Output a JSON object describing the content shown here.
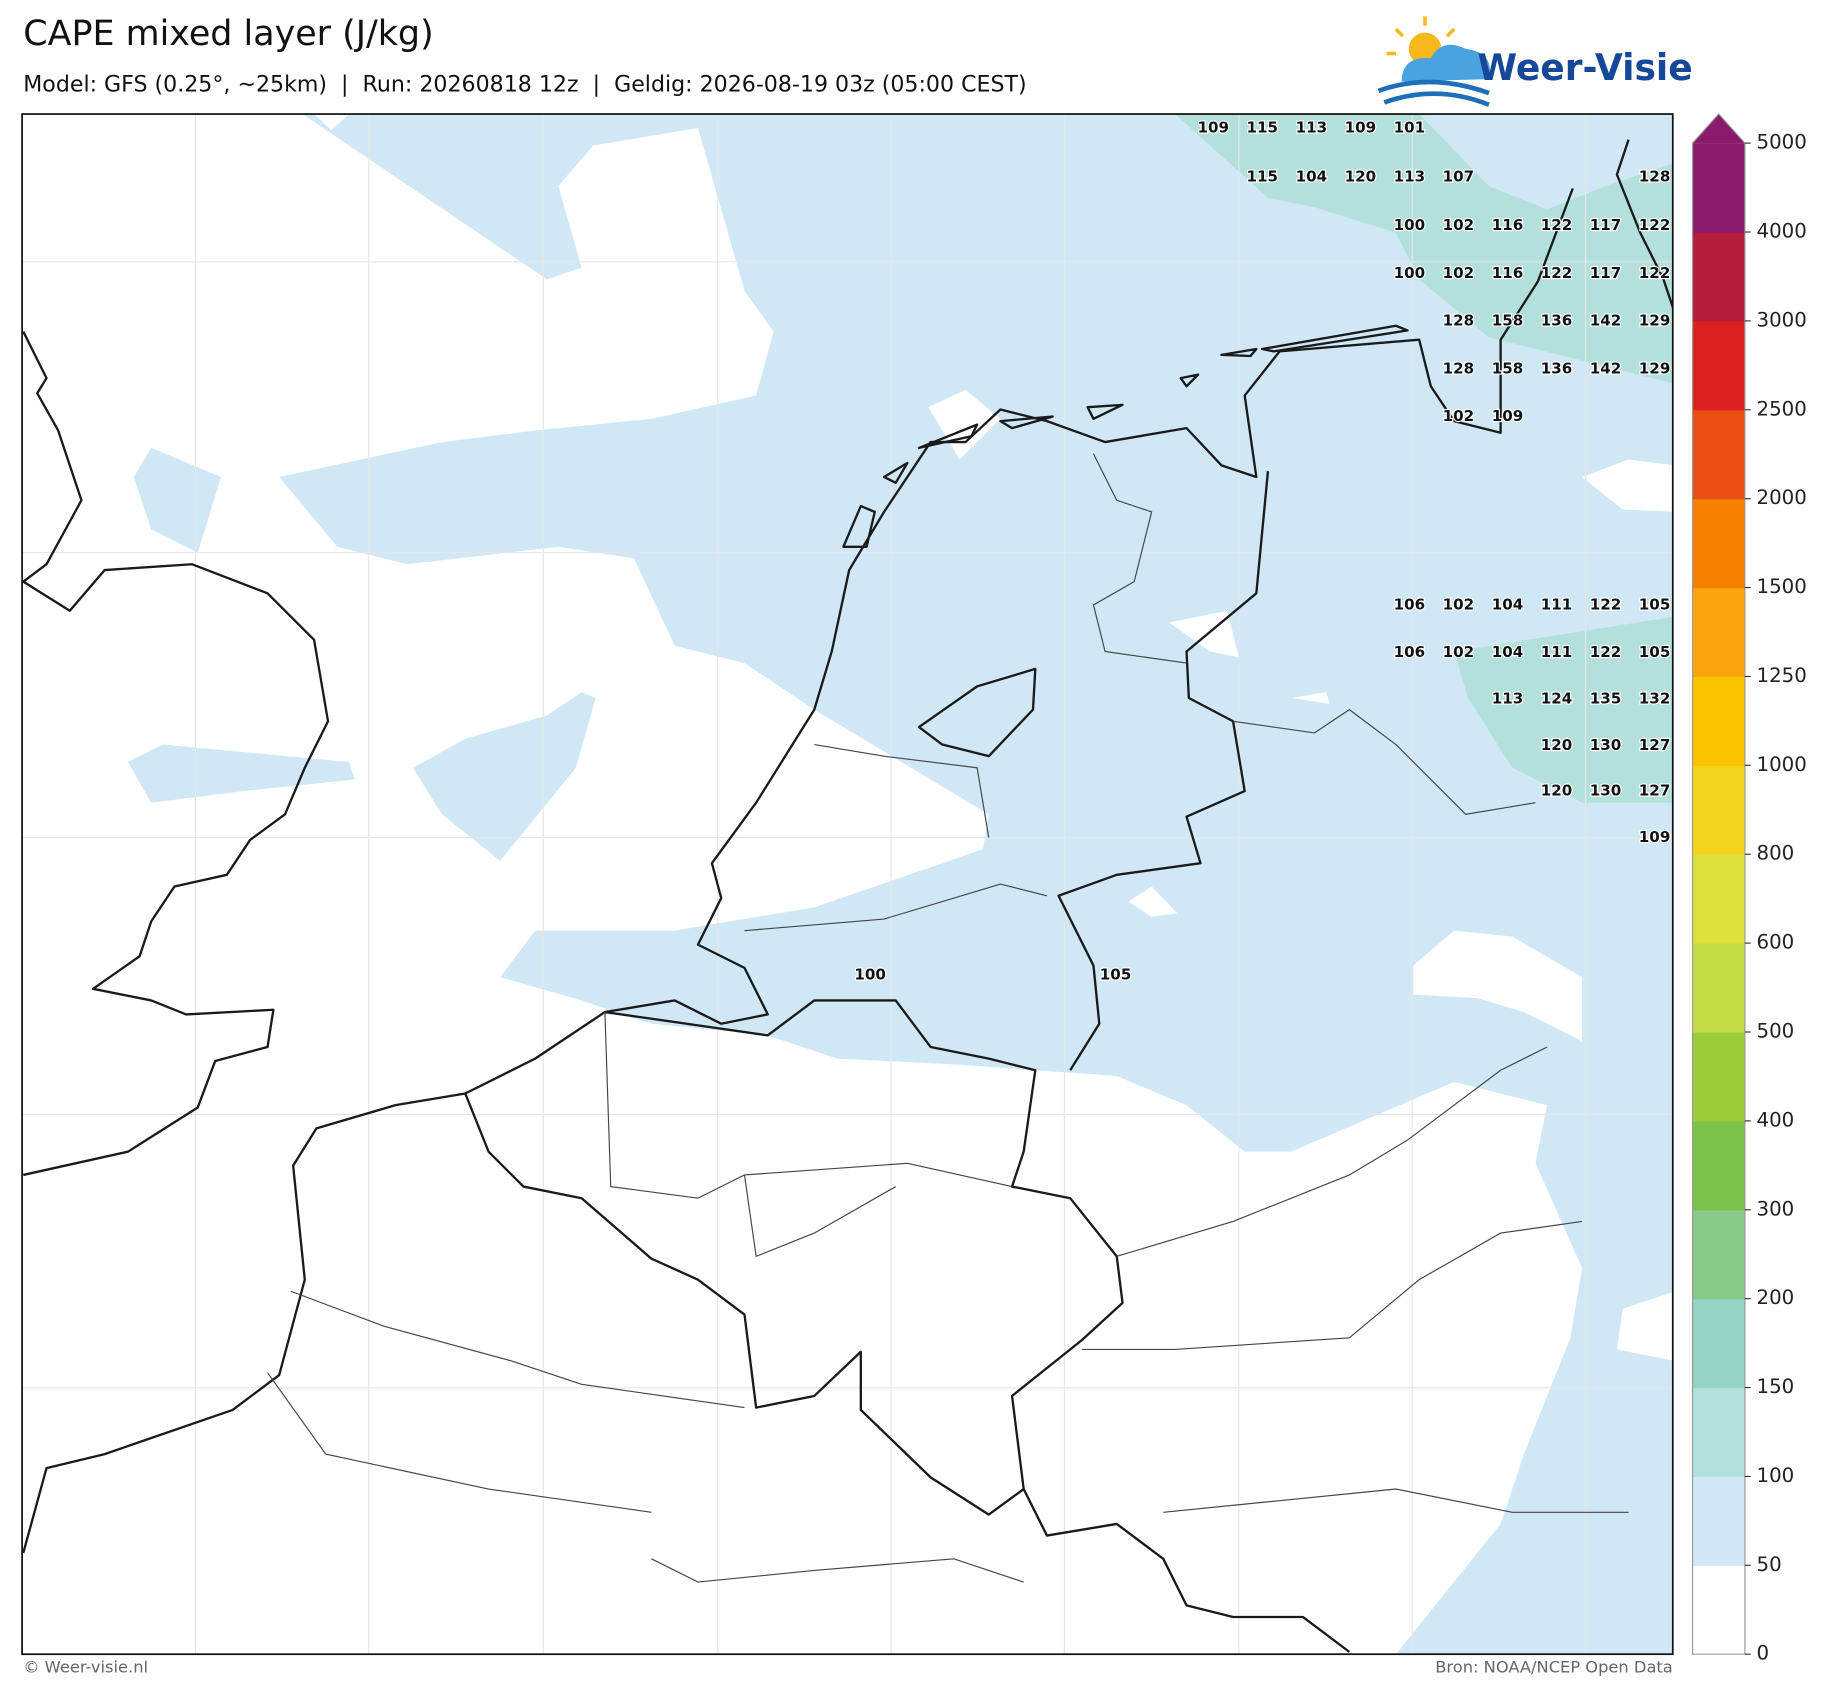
{
  "header": {
    "title": "CAPE mixed layer (J/kg)",
    "subtitle": "Model: GFS (0.25°, ~25km)  |  Run: 20260818 12z  |  Geldig: 2026-08-19 03z (05:00 CEST)",
    "logo": "Weer-Visie"
  },
  "map": {
    "labels": [
      109,
      115,
      113,
      109,
      101,
      115,
      104,
      120,
      113,
      107,
      128,
      100,
      102,
      116,
      122,
      117,
      122,
      100,
      102,
      116,
      122,
      117,
      122,
      128,
      158,
      136,
      142,
      129,
      128,
      158,
      136,
      142,
      129,
      102,
      109,
      106,
      102,
      104,
      111,
      122,
      105,
      106,
      102,
      104,
      111,
      122,
      105,
      113,
      124,
      135,
      132,
      120,
      130,
      127,
      120,
      130,
      127,
      109,
      100,
      105
    ]
  },
  "colorbar": {
    "ticks": [
      0,
      50,
      100,
      150,
      200,
      300,
      400,
      500,
      600,
      800,
      1000,
      1250,
      1500,
      2000,
      2500,
      3000,
      4000,
      5000
    ],
    "colors": [
      "#ffffff",
      "#d0e7f6",
      "#b4e0dc",
      "#94d3c4",
      "#88c98a",
      "#7cc24a",
      "#9ccc3c",
      "#c3dc44",
      "#dde03a",
      "#f2d41c",
      "#f9c300",
      "#fca40e",
      "#f77f00",
      "#e94e12",
      "#dc2020",
      "#b61c3e",
      "#8a1a6c"
    ]
  },
  "footer": {
    "left": "© Weer-visie.nl",
    "right": "Bron: NOAA/NCEP Open Data"
  }
}
